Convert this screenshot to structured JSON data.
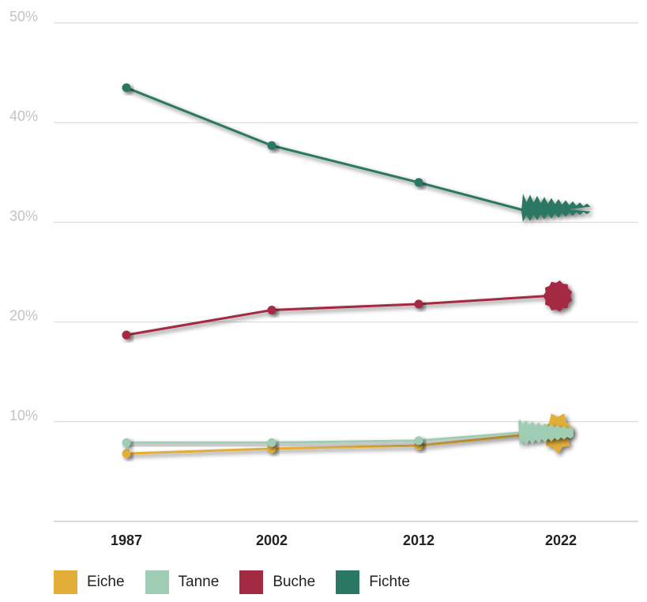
{
  "chart_data": {
    "type": "line",
    "title": "",
    "xlabel": "",
    "ylabel": "",
    "categories": [
      "1987",
      "2002",
      "2012",
      "2022"
    ],
    "x_tick_labels": [
      "1987",
      "2002",
      "2012",
      "2022"
    ],
    "ylim": [
      0,
      50
    ],
    "y_ticks": [
      10,
      20,
      30,
      40,
      50
    ],
    "y_tick_labels": [
      "10%",
      "20%",
      "30%",
      "40%",
      "50%"
    ],
    "grid": true,
    "legend_position": "bottom-left",
    "series": [
      {
        "name": "Eiche",
        "color": "#e2ae38",
        "values": [
          6.8,
          7.3,
          7.6,
          8.9
        ],
        "icon": "oak-leaf-icon"
      },
      {
        "name": "Tanne",
        "color": "#9fcdb3",
        "values": [
          7.9,
          7.9,
          8.1,
          8.9
        ],
        "icon": "fir-tree-icon"
      },
      {
        "name": "Buche",
        "color": "#a32a43",
        "values": [
          18.7,
          21.2,
          21.8,
          22.6
        ],
        "icon": "beech-leaf-icon"
      },
      {
        "name": "Fichte",
        "color": "#2a7864",
        "values": [
          43.5,
          37.7,
          34.0,
          31.3
        ],
        "icon": "spruce-tree-icon"
      }
    ]
  }
}
